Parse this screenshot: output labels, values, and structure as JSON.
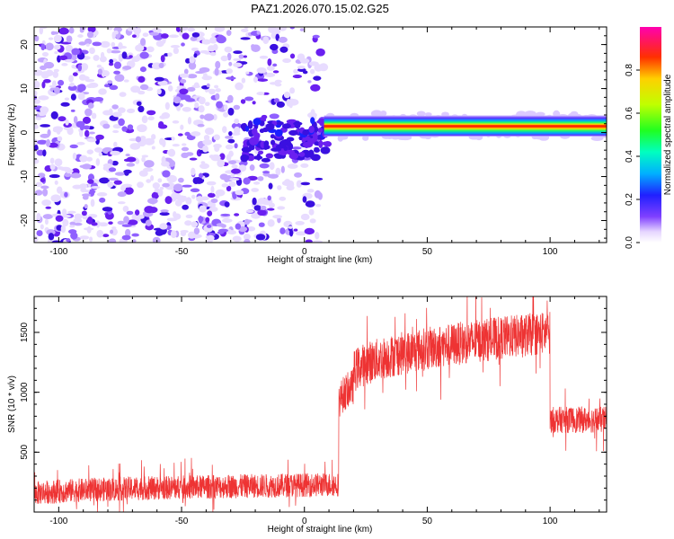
{
  "title": "PAZ1.2026.070.15.02.G25",
  "chart_data": [
    {
      "type": "heatmap",
      "xlabel": "Height of straight line (km)",
      "ylabel": "Frequency (Hz)",
      "xlim": [
        -110,
        123
      ],
      "ylim": [
        -25,
        24
      ],
      "xticks": [
        -100,
        -50,
        0,
        50,
        100
      ],
      "yticks": [
        -20,
        -10,
        0,
        10,
        20
      ],
      "colorbar": {
        "label": "Normalized spectral amplitude",
        "range": [
          0,
          1
        ],
        "ticks": [
          "0.0",
          "0.2",
          "0.4",
          "0.6",
          "0.8"
        ],
        "colormap": "rainbow (violet to magenta)"
      },
      "features": [
        {
          "name": "noise",
          "x_range": [
            -110,
            8
          ],
          "freq_range": [
            -25,
            24
          ],
          "amplitude": [
            0.0,
            0.2
          ]
        },
        {
          "name": "signal-band",
          "x_range": [
            8,
            123
          ],
          "center_freq_hz": 1.5,
          "amplitude": [
            0.0,
            1.0
          ]
        }
      ],
      "grid": false
    },
    {
      "type": "line",
      "xlabel": "Height of straight line (km)",
      "ylabel": "SNR (10 * v/v)",
      "xlim": [
        -110,
        123
      ],
      "ylim": [
        0,
        1800
      ],
      "xticks": [
        -100,
        -50,
        0,
        50,
        100
      ],
      "yticks": [
        500,
        1000,
        1500
      ],
      "color": "#ee3333",
      "segments": [
        {
          "x_start": -110,
          "x_end": 14,
          "snr_start": 150,
          "snr_end": 230,
          "noise": 100
        },
        {
          "x_start": 14,
          "x_end": 20,
          "snr_start": 900,
          "snr_end": 1050,
          "noise": 150
        },
        {
          "x_start": 20,
          "x_end": 100,
          "snr_start": 1150,
          "snr_end": 1500,
          "noise": 180
        },
        {
          "x_start": 100,
          "x_end": 123,
          "snr_start": 770,
          "snr_end": 770,
          "noise": 110
        }
      ],
      "grid": false
    }
  ]
}
